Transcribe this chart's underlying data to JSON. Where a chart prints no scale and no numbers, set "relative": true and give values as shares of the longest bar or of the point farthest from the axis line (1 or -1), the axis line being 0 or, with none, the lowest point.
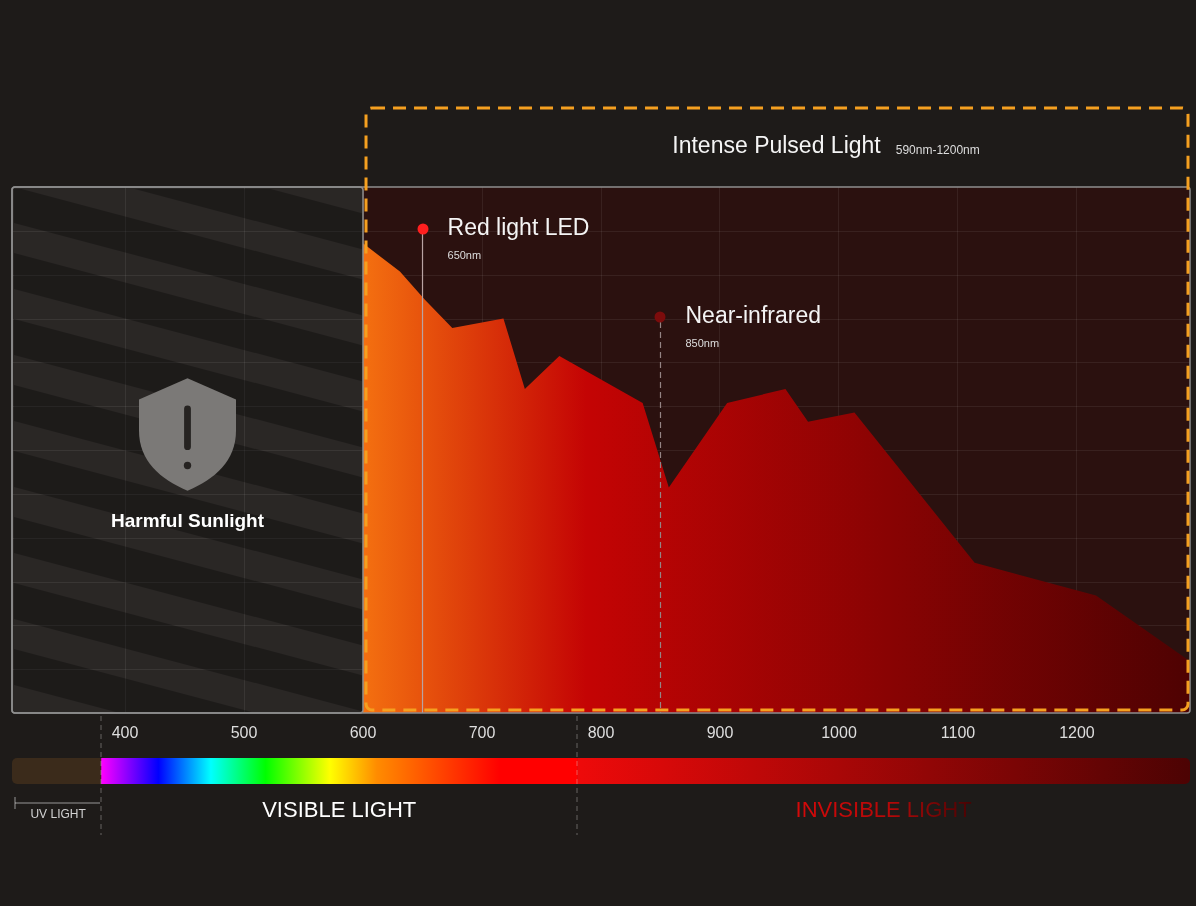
{
  "chart_data": {
    "type": "area",
    "relative": true,
    "x": [
      600,
      631,
      652,
      675,
      718,
      736,
      765,
      835,
      857,
      906,
      955,
      974,
      1013,
      1114,
      1216,
      1295
    ],
    "values": [
      1.0,
      0.94,
      0.88,
      0.82,
      0.84,
      0.69,
      0.76,
      0.66,
      0.48,
      0.66,
      0.69,
      0.62,
      0.64,
      0.32,
      0.25,
      0.11
    ],
    "color": "#c40404",
    "xlim": [
      305,
      1295
    ],
    "xticks": [
      400,
      500,
      600,
      700,
      800,
      900,
      1000,
      1100,
      1200
    ],
    "grid": true,
    "ref_lines": [
      {
        "axis": "x",
        "value": 650,
        "label": "Red light LED",
        "color": "#b9a3a3",
        "line_style": "solid"
      },
      {
        "axis": "x",
        "value": 850,
        "label": "Near-infrared",
        "color": "#948484",
        "line_style": "dashed"
      }
    ],
    "bands": [
      {
        "axis": "x",
        "from": 305,
        "to": 600,
        "label": "Harmful Sunlight",
        "color": "#2a2725"
      },
      {
        "axis": "x",
        "from": 600,
        "to": 1295,
        "label": "Intense Pulsed Light",
        "color": "#2b110f"
      }
    ],
    "annotations": [
      {
        "text": "650nm",
        "x": 650
      },
      {
        "text": "850nm",
        "x": 850
      },
      "590nm-1200nm",
      "UV LIGHT",
      "VISIBLE LIGHT",
      "INVISIBLE LIGHT"
    ]
  }
}
